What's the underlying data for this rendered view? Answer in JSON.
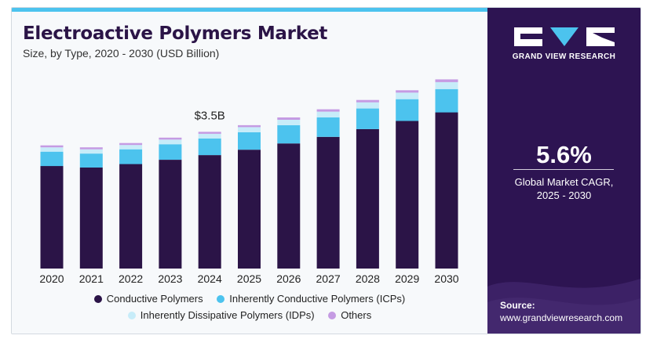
{
  "chart_data": {
    "type": "bar",
    "stacked": true,
    "title": "Electroactive Polymers Market",
    "subtitle": "Size, by Type, 2020 - 2030 (USD Billion)",
    "categories": [
      "2020",
      "2021",
      "2022",
      "2023",
      "2024",
      "2025",
      "2026",
      "2027",
      "2028",
      "2029",
      "2030"
    ],
    "series": [
      {
        "name": "Conductive Polymers",
        "color": "#2b1447",
        "values": [
          2.64,
          2.6,
          2.69,
          2.8,
          2.92,
          3.06,
          3.22,
          3.39,
          3.59,
          3.8,
          4.02
        ]
      },
      {
        "name": "Inherently Conductive Polymers (ICPs)",
        "color": "#4cc3ee",
        "values": [
          0.37,
          0.36,
          0.38,
          0.4,
          0.43,
          0.45,
          0.47,
          0.5,
          0.53,
          0.56,
          0.6
        ]
      },
      {
        "name": "Inherently Dissipative Polymers (IDPs)",
        "color": "#c7ecf9",
        "values": [
          0.11,
          0.11,
          0.11,
          0.12,
          0.12,
          0.13,
          0.14,
          0.15,
          0.16,
          0.17,
          0.18
        ]
      },
      {
        "name": "Others",
        "color": "#c59be3",
        "values": [
          0.05,
          0.05,
          0.05,
          0.05,
          0.05,
          0.05,
          0.06,
          0.06,
          0.06,
          0.06,
          0.07
        ]
      }
    ],
    "annotations": [
      {
        "category": "2024",
        "label": "$3.5B"
      }
    ],
    "ylim": [
      0,
      5.2
    ],
    "legend_position": "bottom",
    "grid": false
  },
  "sidebar": {
    "brand": "GRAND VIEW RESEARCH",
    "cagr_value": "5.6%",
    "cagr_label_1": "Global Market CAGR,",
    "cagr_label_2": "2025 - 2030",
    "source_label": "Source:",
    "source_url": "www.grandviewresearch.com"
  }
}
